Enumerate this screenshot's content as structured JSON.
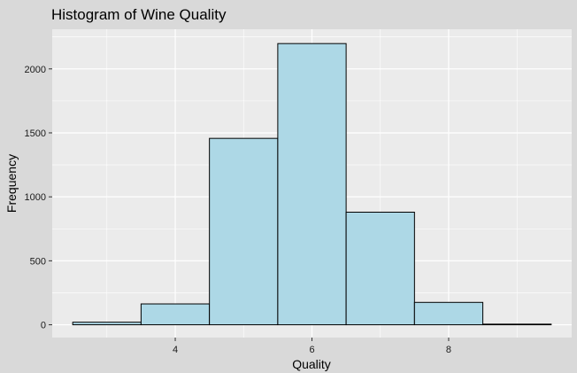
{
  "chart_data": {
    "type": "bar",
    "title": "Histogram of Wine Quality",
    "xlabel": "Quality",
    "ylabel": "Frequency",
    "bins": [
      {
        "x0": 2.5,
        "x1": 3.5,
        "value": 20
      },
      {
        "x0": 3.5,
        "x1": 4.5,
        "value": 163
      },
      {
        "x0": 4.5,
        "x1": 5.5,
        "value": 1457
      },
      {
        "x0": 5.5,
        "x1": 6.5,
        "value": 2198
      },
      {
        "x0": 6.5,
        "x1": 7.5,
        "value": 880
      },
      {
        "x0": 7.5,
        "x1": 8.5,
        "value": 175
      },
      {
        "x0": 8.5,
        "x1": 9.5,
        "value": 5
      }
    ],
    "xlim": [
      2.2,
      9.8
    ],
    "ylim": [
      -100,
      2310
    ],
    "xticks": [
      4,
      6,
      8
    ],
    "yticks": [
      0,
      500,
      1000,
      1500,
      2000
    ],
    "grid": true,
    "legend": "none",
    "colors": {
      "plot_background": "#ebebeb",
      "page_background": "#d9d9d9",
      "grid": "#ffffff",
      "bar_fill": "#add8e6",
      "bar_stroke": "#000000"
    }
  }
}
